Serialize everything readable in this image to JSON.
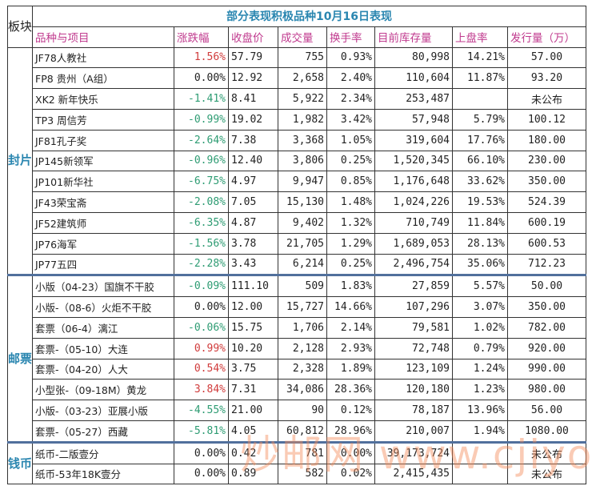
{
  "title": "部分表现积极品种10月16日表现",
  "section_header": "板块",
  "headers": [
    "品种与项目",
    "涨跌幅",
    "收盘价",
    "成交量",
    "换手率",
    "目前库存量",
    "上盘率",
    "发行量（万）"
  ],
  "sections": [
    {
      "label": "封片",
      "rows": [
        [
          "JF78人教社",
          "1.56%",
          "57.79",
          "755",
          "0.93%",
          "80,998",
          "14.21%",
          "57.00",
          "up"
        ],
        [
          "FP8 贵州（A组）",
          "0.00%",
          "12.92",
          "2,658",
          "2.40%",
          "110,604",
          "11.87%",
          "93.20",
          "flat"
        ],
        [
          "XK2 新年快乐",
          "-1.41%",
          "8.41",
          "5,922",
          "2.34%",
          "253,487",
          "",
          "未公布",
          "down"
        ],
        [
          "TP3 周信芳",
          "-0.99%",
          "19.02",
          "1,982",
          "3.42%",
          "57,948",
          "5.79%",
          "100.12",
          "down"
        ],
        [
          "JF81孔子奖",
          "-2.64%",
          "7.38",
          "3,368",
          "1.05%",
          "319,604",
          "17.76%",
          "180.00",
          "down"
        ],
        [
          "JP145新领军",
          "-0.96%",
          "12.40",
          "3,806",
          "0.25%",
          "1,520,345",
          "66.10%",
          "230.00",
          "down"
        ],
        [
          "JP101新华社",
          "-6.75%",
          "4.97",
          "9,947",
          "0.85%",
          "1,176,648",
          "33.62%",
          "350.00",
          "down"
        ],
        [
          "JF43荣宝斋",
          "-2.08%",
          "7.05",
          "15,130",
          "1.48%",
          "1,024,226",
          "19.53%",
          "524.39",
          "down"
        ],
        [
          "JF52建筑师",
          "-6.35%",
          "4.87",
          "9,402",
          "1.32%",
          "710,749",
          "11.84%",
          "600.19",
          "down"
        ],
        [
          "JP76海军",
          "-1.56%",
          "3.78",
          "21,705",
          "1.29%",
          "1,689,053",
          "28.13%",
          "600.53",
          "down"
        ],
        [
          "JP77五四",
          "-2.28%",
          "3.43",
          "6,214",
          "0.25%",
          "2,496,754",
          "35.06%",
          "712.23",
          "down"
        ]
      ]
    },
    {
      "label": "邮票",
      "rows": [
        [
          "小版（04-23）国旗不干胶",
          "-0.09%",
          "111.10",
          "509",
          "1.83%",
          "27,859",
          "5.57%",
          "50.00",
          "down"
        ],
        [
          "小版-（08-6）火炬不干胶",
          "0.00%",
          "12.00",
          "15,727",
          "14.66%",
          "107,296",
          "3.07%",
          "350.00",
          "flat"
        ],
        [
          "套票（06-4）漓江",
          "-0.06%",
          "15.75",
          "1,706",
          "2.14%",
          "79,581",
          "1.02%",
          "782.00",
          "down"
        ],
        [
          "套票-（05-10）大连",
          "0.99%",
          "10.20",
          "2,128",
          "2.93%",
          "72,748",
          "0.79%",
          "920.00",
          "up"
        ],
        [
          "套票-（04-20）人大",
          "0.54%",
          "3.75",
          "2,328",
          "1.89%",
          "123,109",
          "1.24%",
          "990.00",
          "up"
        ],
        [
          "小型张-（09-18M）黄龙",
          "3.84%",
          "7.31",
          "34,086",
          "28.36%",
          "120,180",
          "1.23%",
          "980.00",
          "up"
        ],
        [
          "小版-（03-23）亚展小版",
          "-4.55%",
          "21.00",
          "90",
          "0.12%",
          "78,187",
          "13.96%",
          "56.00",
          "down"
        ],
        [
          "套票-（05-27）西藏",
          "-5.81%",
          "4.05",
          "60,812",
          "28.96%",
          "210,007",
          "1.94%",
          "1080.00",
          "down"
        ]
      ]
    },
    {
      "label": "钱币",
      "rows": [
        [
          "纸币-二版壹分",
          "0.00%",
          "0.42",
          "781",
          "0.00%",
          "39,173,724",
          "",
          "未公布",
          "flat"
        ],
        [
          "纸币-53年18K壹分",
          "0.00%",
          "0.89",
          "582",
          "0.02%",
          "2,415,435",
          "",
          "未公布",
          "flat"
        ]
      ]
    }
  ],
  "watermark": "炒邮网 www.cjiyou.net",
  "colors": {
    "up": "#d03b3b",
    "down": "#2e9c73",
    "header": "#c03a8e",
    "title": "#2a86b0",
    "separator": "#51709c"
  }
}
